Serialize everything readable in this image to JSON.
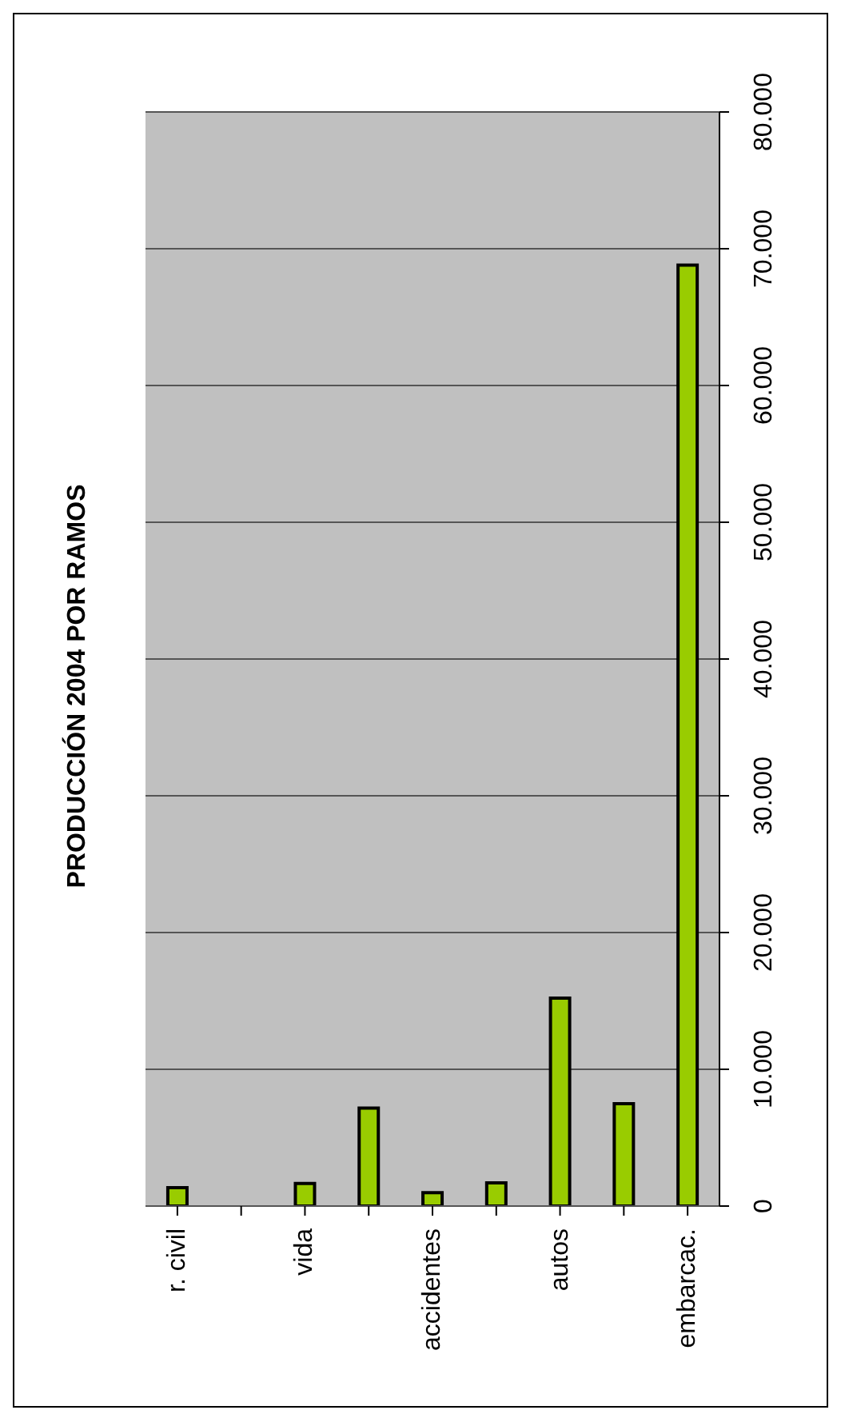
{
  "chart_data": {
    "type": "bar",
    "title": "PRODUCCIÓN 2004 POR RAMOS",
    "categories": [
      "r. civil",
      null,
      "vida",
      null,
      "accidentes",
      null,
      "autos",
      null,
      "embarcac."
    ],
    "values": [
      1340,
      0,
      1650,
      7170,
      980,
      1690,
      15200,
      7480,
      68800
    ],
    "color": "#99cc00",
    "ylim": [
      0,
      80000
    ],
    "yticks": [
      0,
      {
        "value": 10000,
        "label": "10.000"
      },
      {
        "value": 20000,
        "label": "20.000"
      },
      {
        "value": 30000,
        "label": "30.000"
      },
      {
        "value": 40000,
        "label": "40.000"
      },
      {
        "value": 50000,
        "label": "50.000"
      },
      {
        "value": 60000,
        "label": "60.000"
      },
      {
        "value": 70000,
        "label": "70.000"
      },
      {
        "value": 80000,
        "label": "80.000"
      }
    ],
    "grid": "y"
  }
}
